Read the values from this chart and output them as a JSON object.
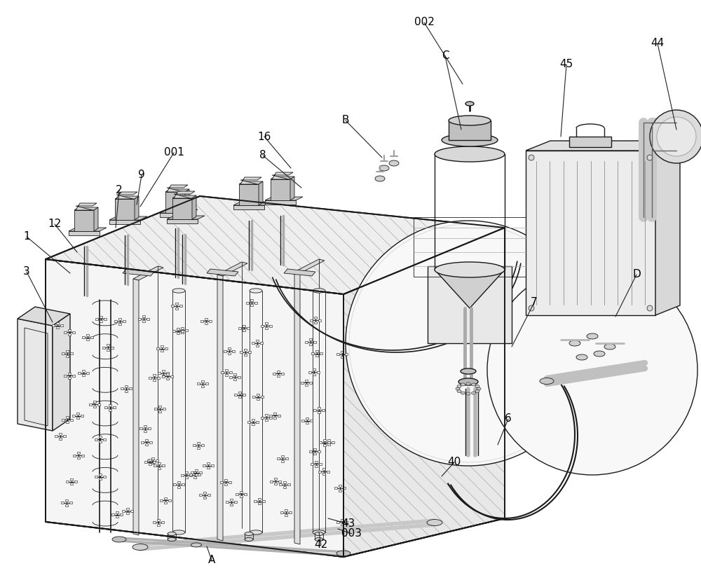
{
  "bg_color": "#ffffff",
  "line_color": "#1a1a1a",
  "hatch_color": "#666666",
  "figsize": [
    10.0,
    8.38
  ],
  "dpi": 100,
  "annotations": [
    [
      "001",
      248,
      218,
      200,
      295
    ],
    [
      "002",
      605,
      32,
      660,
      120
    ],
    [
      "003",
      502,
      762,
      482,
      755
    ],
    [
      "1",
      38,
      338,
      100,
      390
    ],
    [
      "2",
      170,
      272,
      165,
      325
    ],
    [
      "3",
      38,
      388,
      75,
      460
    ],
    [
      "6",
      725,
      598,
      710,
      635
    ],
    [
      "7",
      762,
      432,
      730,
      495
    ],
    [
      "8",
      375,
      222,
      430,
      268
    ],
    [
      "9",
      202,
      250,
      195,
      292
    ],
    [
      "12",
      78,
      320,
      110,
      360
    ],
    [
      "16",
      377,
      195,
      415,
      240
    ],
    [
      "40",
      648,
      660,
      630,
      680
    ],
    [
      "42",
      458,
      778,
      455,
      760
    ],
    [
      "43",
      497,
      748,
      468,
      740
    ],
    [
      "44",
      938,
      62,
      965,
      185
    ],
    [
      "45",
      808,
      92,
      800,
      195
    ],
    [
      "A",
      302,
      800,
      295,
      780
    ],
    [
      "B",
      493,
      172,
      545,
      225
    ],
    [
      "C",
      635,
      80,
      658,
      185
    ],
    [
      "D",
      908,
      392,
      878,
      452
    ]
  ]
}
